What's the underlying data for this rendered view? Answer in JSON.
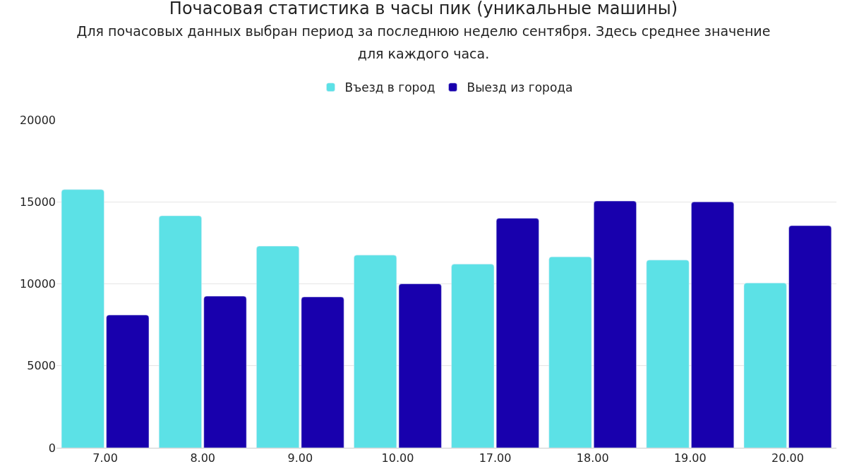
{
  "chart_data": {
    "type": "bar",
    "title": "Почасовая статистика в часы пик (уникальные машины)",
    "subtitle": "Для почасовых данных выбран период за последнюю неделю сентября. Здесь среднее значение для каждого часа.",
    "categories": [
      "7.00",
      "8.00",
      "9.00",
      "10.00",
      "17.00",
      "18.00",
      "19.00",
      "20.00"
    ],
    "series": [
      {
        "name": "Въезд в город",
        "color": "#5ce1e6",
        "values": [
          15750,
          14150,
          12300,
          11750,
          11200,
          11650,
          11450,
          10050
        ]
      },
      {
        "name": "Выезд из города",
        "color": "#1800ad",
        "values": [
          8100,
          9250,
          9200,
          10000,
          14000,
          15050,
          15000,
          13550
        ]
      }
    ],
    "ylim": [
      0,
      20000
    ],
    "yticks": [
      0,
      5000,
      10000,
      15000,
      20000
    ],
    "grid": "y",
    "legend": "top"
  }
}
